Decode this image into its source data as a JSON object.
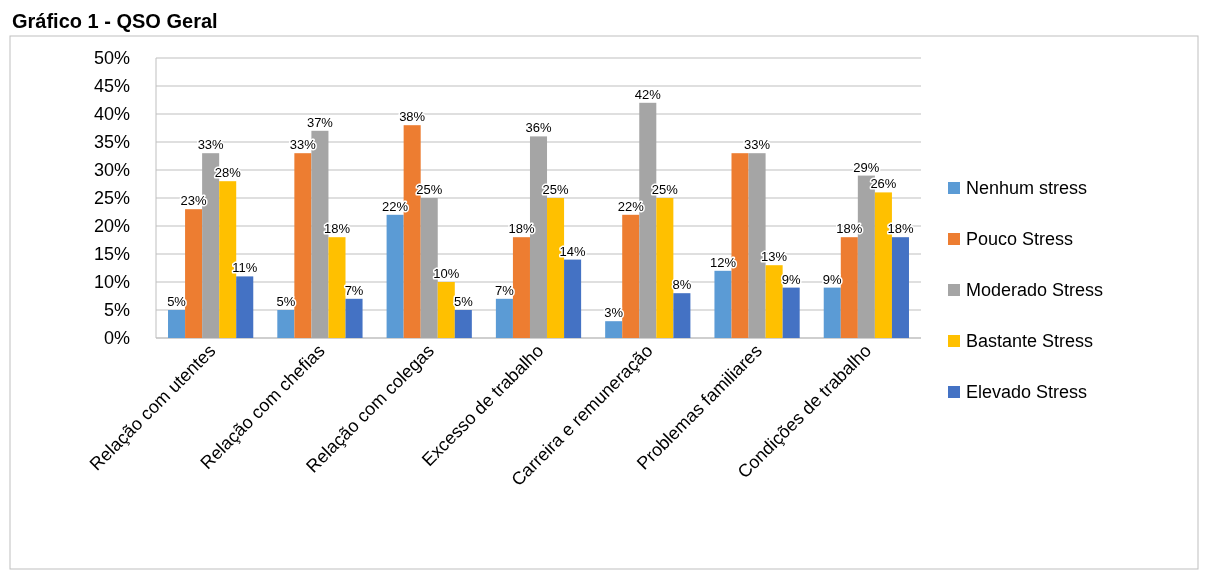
{
  "chart_data": {
    "type": "bar",
    "title": "Gráfico 1 - QSO Geral",
    "categories": [
      "Relação com utentes",
      "Relação com chefias",
      "Relação com colegas",
      "Excesso de trabalho",
      "Carreira e remuneração",
      "Problemas familiares",
      "Condições de trabalho"
    ],
    "series": [
      {
        "name": "Nenhum stress",
        "color": "#5b9bd5",
        "values": [
          5,
          5,
          22,
          7,
          3,
          12,
          9
        ],
        "value_labels": [
          "5%",
          "5%",
          "22%",
          "7%",
          "3%",
          "12%",
          "9%"
        ]
      },
      {
        "name": "Pouco Stress",
        "color": "#ed7d31",
        "values": [
          23,
          33,
          38,
          18,
          22,
          33,
          18
        ],
        "value_labels": [
          "23%",
          "33%",
          "38%",
          "18%",
          "22%",
          null,
          "18%"
        ]
      },
      {
        "name": "Moderado Stress",
        "color": "#a5a5a5",
        "values": [
          33,
          37,
          25,
          36,
          42,
          33,
          29
        ],
        "value_labels": [
          "33%",
          "37%",
          "25%",
          "36%",
          "42%",
          "33%",
          "29%"
        ]
      },
      {
        "name": "Bastante Stress",
        "color": "#ffc000",
        "values": [
          28,
          18,
          10,
          25,
          25,
          13,
          26
        ],
        "value_labels": [
          "28%",
          "18%",
          "10%",
          "25%",
          "25%",
          "13%",
          "26%"
        ]
      },
      {
        "name": "Elevado Stress",
        "color": "#4472c4",
        "values": [
          11,
          7,
          5,
          14,
          8,
          9,
          18
        ],
        "value_labels": [
          "11%",
          "7%",
          "5%",
          "14%",
          "8%",
          "9%",
          "18%"
        ]
      }
    ],
    "ylim": [
      0,
      50
    ],
    "yticks": [
      {
        "value": 0,
        "label": "0%"
      },
      {
        "value": 5,
        "label": "5%"
      },
      {
        "value": 10,
        "label": "10%"
      },
      {
        "value": 15,
        "label": "15%"
      },
      {
        "value": 20,
        "label": "20%"
      },
      {
        "value": 25,
        "label": "25%"
      },
      {
        "value": 30,
        "label": "30%"
      },
      {
        "value": 35,
        "label": "35%"
      },
      {
        "value": 40,
        "label": "40%"
      },
      {
        "value": 45,
        "label": "45%"
      },
      {
        "value": 50,
        "label": "50%"
      }
    ],
    "grid": "y",
    "legend": "right"
  }
}
